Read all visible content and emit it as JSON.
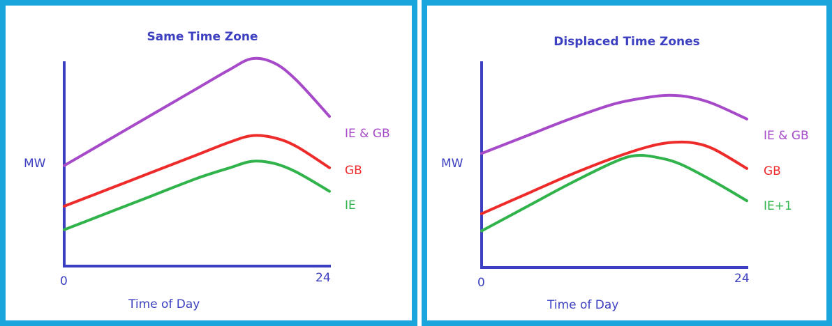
{
  "colors": {
    "frame": "#1aa6dc",
    "axis": "#3b3fc0",
    "purple": "#a64ac9",
    "red": "#ee2b2b",
    "green": "#2fb34a"
  },
  "chart_data": [
    {
      "type": "line",
      "title": "Same Time Zone",
      "xlabel": "Time of Day",
      "ylabel": "MW",
      "x_ticks": [
        "0",
        "24"
      ],
      "xlim": [
        0,
        24
      ],
      "ylim": [
        0,
        100
      ],
      "grid": false,
      "series": [
        {
          "name": "IE & GB",
          "color": "#a64ac9",
          "points": [
            [
              0,
              47
            ],
            [
              4,
              59
            ],
            [
              8,
              71
            ],
            [
              12,
              83
            ],
            [
              15,
              92
            ],
            [
              17,
              97
            ],
            [
              19,
              95
            ],
            [
              21,
              87
            ],
            [
              24,
              70
            ]
          ]
        },
        {
          "name": "GB",
          "color": "#ee2b2b",
          "points": [
            [
              0,
              28
            ],
            [
              4,
              36
            ],
            [
              8,
              44
            ],
            [
              12,
              52
            ],
            [
              15,
              58
            ],
            [
              17,
              61
            ],
            [
              19,
              60
            ],
            [
              21,
              56
            ],
            [
              24,
              46
            ]
          ]
        },
        {
          "name": "IE",
          "color": "#2fb34a",
          "points": [
            [
              0,
              17
            ],
            [
              4,
              25
            ],
            [
              8,
              33
            ],
            [
              12,
              41
            ],
            [
              15,
              46
            ],
            [
              17,
              49
            ],
            [
              19,
              48
            ],
            [
              21,
              44
            ],
            [
              24,
              35
            ]
          ]
        }
      ]
    },
    {
      "type": "line",
      "title": "Displaced Time Zones",
      "xlabel": "Time of Day",
      "ylabel": "MW",
      "x_ticks": [
        "0",
        "24"
      ],
      "xlim": [
        0,
        24
      ],
      "ylim": [
        0,
        100
      ],
      "grid": false,
      "series": [
        {
          "name": "IE & GB",
          "color": "#a64ac9",
          "points": [
            [
              0,
              53
            ],
            [
              4,
              61
            ],
            [
              8,
              69
            ],
            [
              12,
              76
            ],
            [
              15,
              79
            ],
            [
              17,
              80
            ],
            [
              19,
              79
            ],
            [
              21,
              76
            ],
            [
              24,
              69
            ]
          ]
        },
        {
          "name": "GB",
          "color": "#ee2b2b",
          "points": [
            [
              0,
              25
            ],
            [
              4,
              34
            ],
            [
              8,
              43
            ],
            [
              12,
              51
            ],
            [
              15,
              56
            ],
            [
              17,
              58
            ],
            [
              19,
              58
            ],
            [
              21,
              55
            ],
            [
              24,
              46
            ]
          ]
        },
        {
          "name": "IE+1",
          "color": "#2fb34a",
          "points": [
            [
              0,
              17
            ],
            [
              4,
              28
            ],
            [
              8,
              39
            ],
            [
              12,
              49
            ],
            [
              14,
              52
            ],
            [
              16,
              51
            ],
            [
              18,
              48
            ],
            [
              21,
              40
            ],
            [
              24,
              31
            ]
          ]
        }
      ]
    }
  ]
}
